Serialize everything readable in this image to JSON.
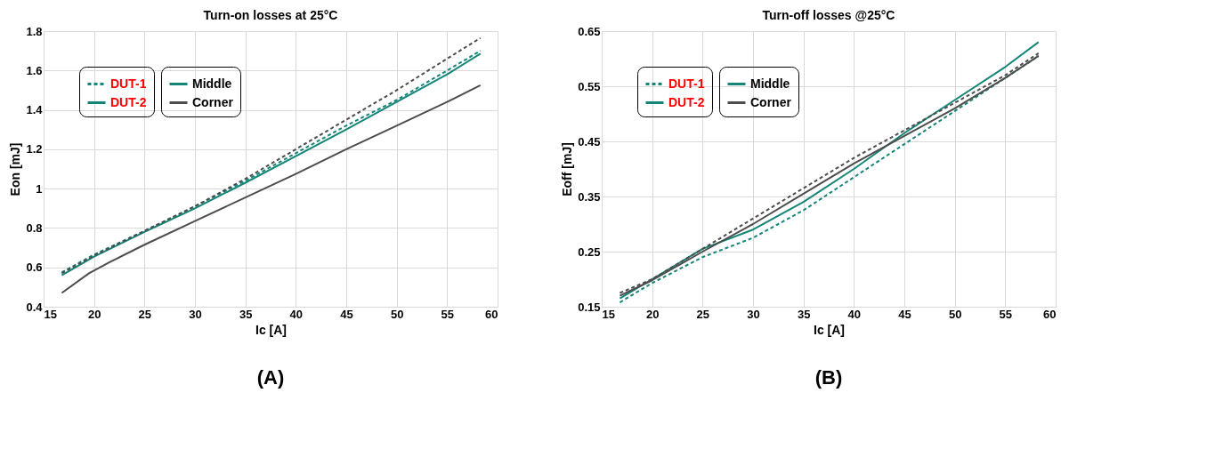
{
  "chart_data": [
    {
      "type": "line",
      "title": "Turn-on losses at 25°C",
      "xlabel": "Ic [A]",
      "ylabel": "Eon [mJ]",
      "xlim": [
        15,
        60
      ],
      "xticks": [
        15,
        20,
        25,
        30,
        35,
        40,
        45,
        50,
        55,
        60
      ],
      "ylim": [
        0.4,
        1.8
      ],
      "yticks": [
        0.4,
        0.6,
        0.8,
        1,
        1.2,
        1.4,
        1.6,
        1.8
      ],
      "grid": true,
      "legend": "top left",
      "annotations": [
        "DUT-1",
        "DUT-2",
        "(A)"
      ],
      "series": [
        {
          "color": "#148577",
          "line_style": "dashed",
          "x": [
            16.8,
            20,
            25,
            30,
            35,
            40,
            45,
            50,
            55,
            58.3
          ],
          "values": [
            0.575,
            0.665,
            0.785,
            0.91,
            1.04,
            1.18,
            1.32,
            1.45,
            1.6,
            1.7
          ]
        },
        {
          "name": "Middle",
          "color": "#148577",
          "line_style": "solid",
          "x": [
            16.8,
            20,
            25,
            30,
            35,
            40,
            45,
            50,
            55,
            58.3
          ],
          "values": [
            0.56,
            0.655,
            0.78,
            0.9,
            1.03,
            1.165,
            1.3,
            1.44,
            1.58,
            1.685
          ]
        },
        {
          "color": "#4d4d4d",
          "line_style": "dashed",
          "x": [
            16.8,
            20,
            25,
            30,
            35,
            40,
            45,
            50,
            55,
            58.3
          ],
          "values": [
            0.57,
            0.66,
            0.785,
            0.91,
            1.05,
            1.2,
            1.35,
            1.5,
            1.66,
            1.765
          ]
        },
        {
          "name": "Corner",
          "color": "#4d4d4d",
          "line_style": "solid",
          "x": [
            16.8,
            19.5,
            21.5,
            25,
            30,
            35,
            40,
            45,
            50,
            55,
            58.3
          ],
          "values": [
            0.47,
            0.57,
            0.625,
            0.715,
            0.835,
            0.955,
            1.075,
            1.2,
            1.32,
            1.44,
            1.525
          ]
        }
      ]
    },
    {
      "type": "line",
      "title": "Turn-off losses @25°C",
      "xlabel": "Ic [A]",
      "ylabel": "Eoff [mJ]",
      "xlim": [
        15,
        60
      ],
      "xticks": [
        15,
        20,
        25,
        30,
        35,
        40,
        45,
        50,
        55,
        60
      ],
      "ylim": [
        0.15,
        0.65
      ],
      "yticks": [
        0.15,
        0.25,
        0.35,
        0.45,
        0.55,
        0.65
      ],
      "grid": true,
      "legend": "top left",
      "annotations": [
        "DUT-1",
        "DUT-2",
        "(B)"
      ],
      "series": [
        {
          "color": "#148577",
          "line_style": "dashed",
          "x": [
            16.8,
            20,
            25,
            30,
            35,
            40,
            45,
            50,
            55,
            58.3
          ],
          "values": [
            0.158,
            0.193,
            0.24,
            0.275,
            0.325,
            0.385,
            0.445,
            0.505,
            0.565,
            0.605
          ]
        },
        {
          "name": "Middle",
          "color": "#148577",
          "line_style": "solid",
          "x": [
            16.8,
            20,
            25,
            30,
            35,
            40,
            45,
            50,
            55,
            58.3
          ],
          "values": [
            0.165,
            0.2,
            0.255,
            0.29,
            0.34,
            0.4,
            0.465,
            0.525,
            0.585,
            0.63
          ]
        },
        {
          "color": "#4d4d4d",
          "line_style": "dashed",
          "x": [
            16.8,
            20,
            25,
            30,
            35,
            40,
            45,
            50,
            55,
            58.3
          ],
          "values": [
            0.175,
            0.2,
            0.255,
            0.31,
            0.365,
            0.42,
            0.47,
            0.52,
            0.57,
            0.61
          ]
        },
        {
          "name": "Corner",
          "color": "#4d4d4d",
          "line_style": "solid",
          "x": [
            16.8,
            20,
            25,
            30,
            35,
            40,
            45,
            50,
            55,
            58.3
          ],
          "values": [
            0.17,
            0.198,
            0.25,
            0.3,
            0.355,
            0.41,
            0.46,
            0.51,
            0.565,
            0.605
          ]
        }
      ]
    }
  ]
}
